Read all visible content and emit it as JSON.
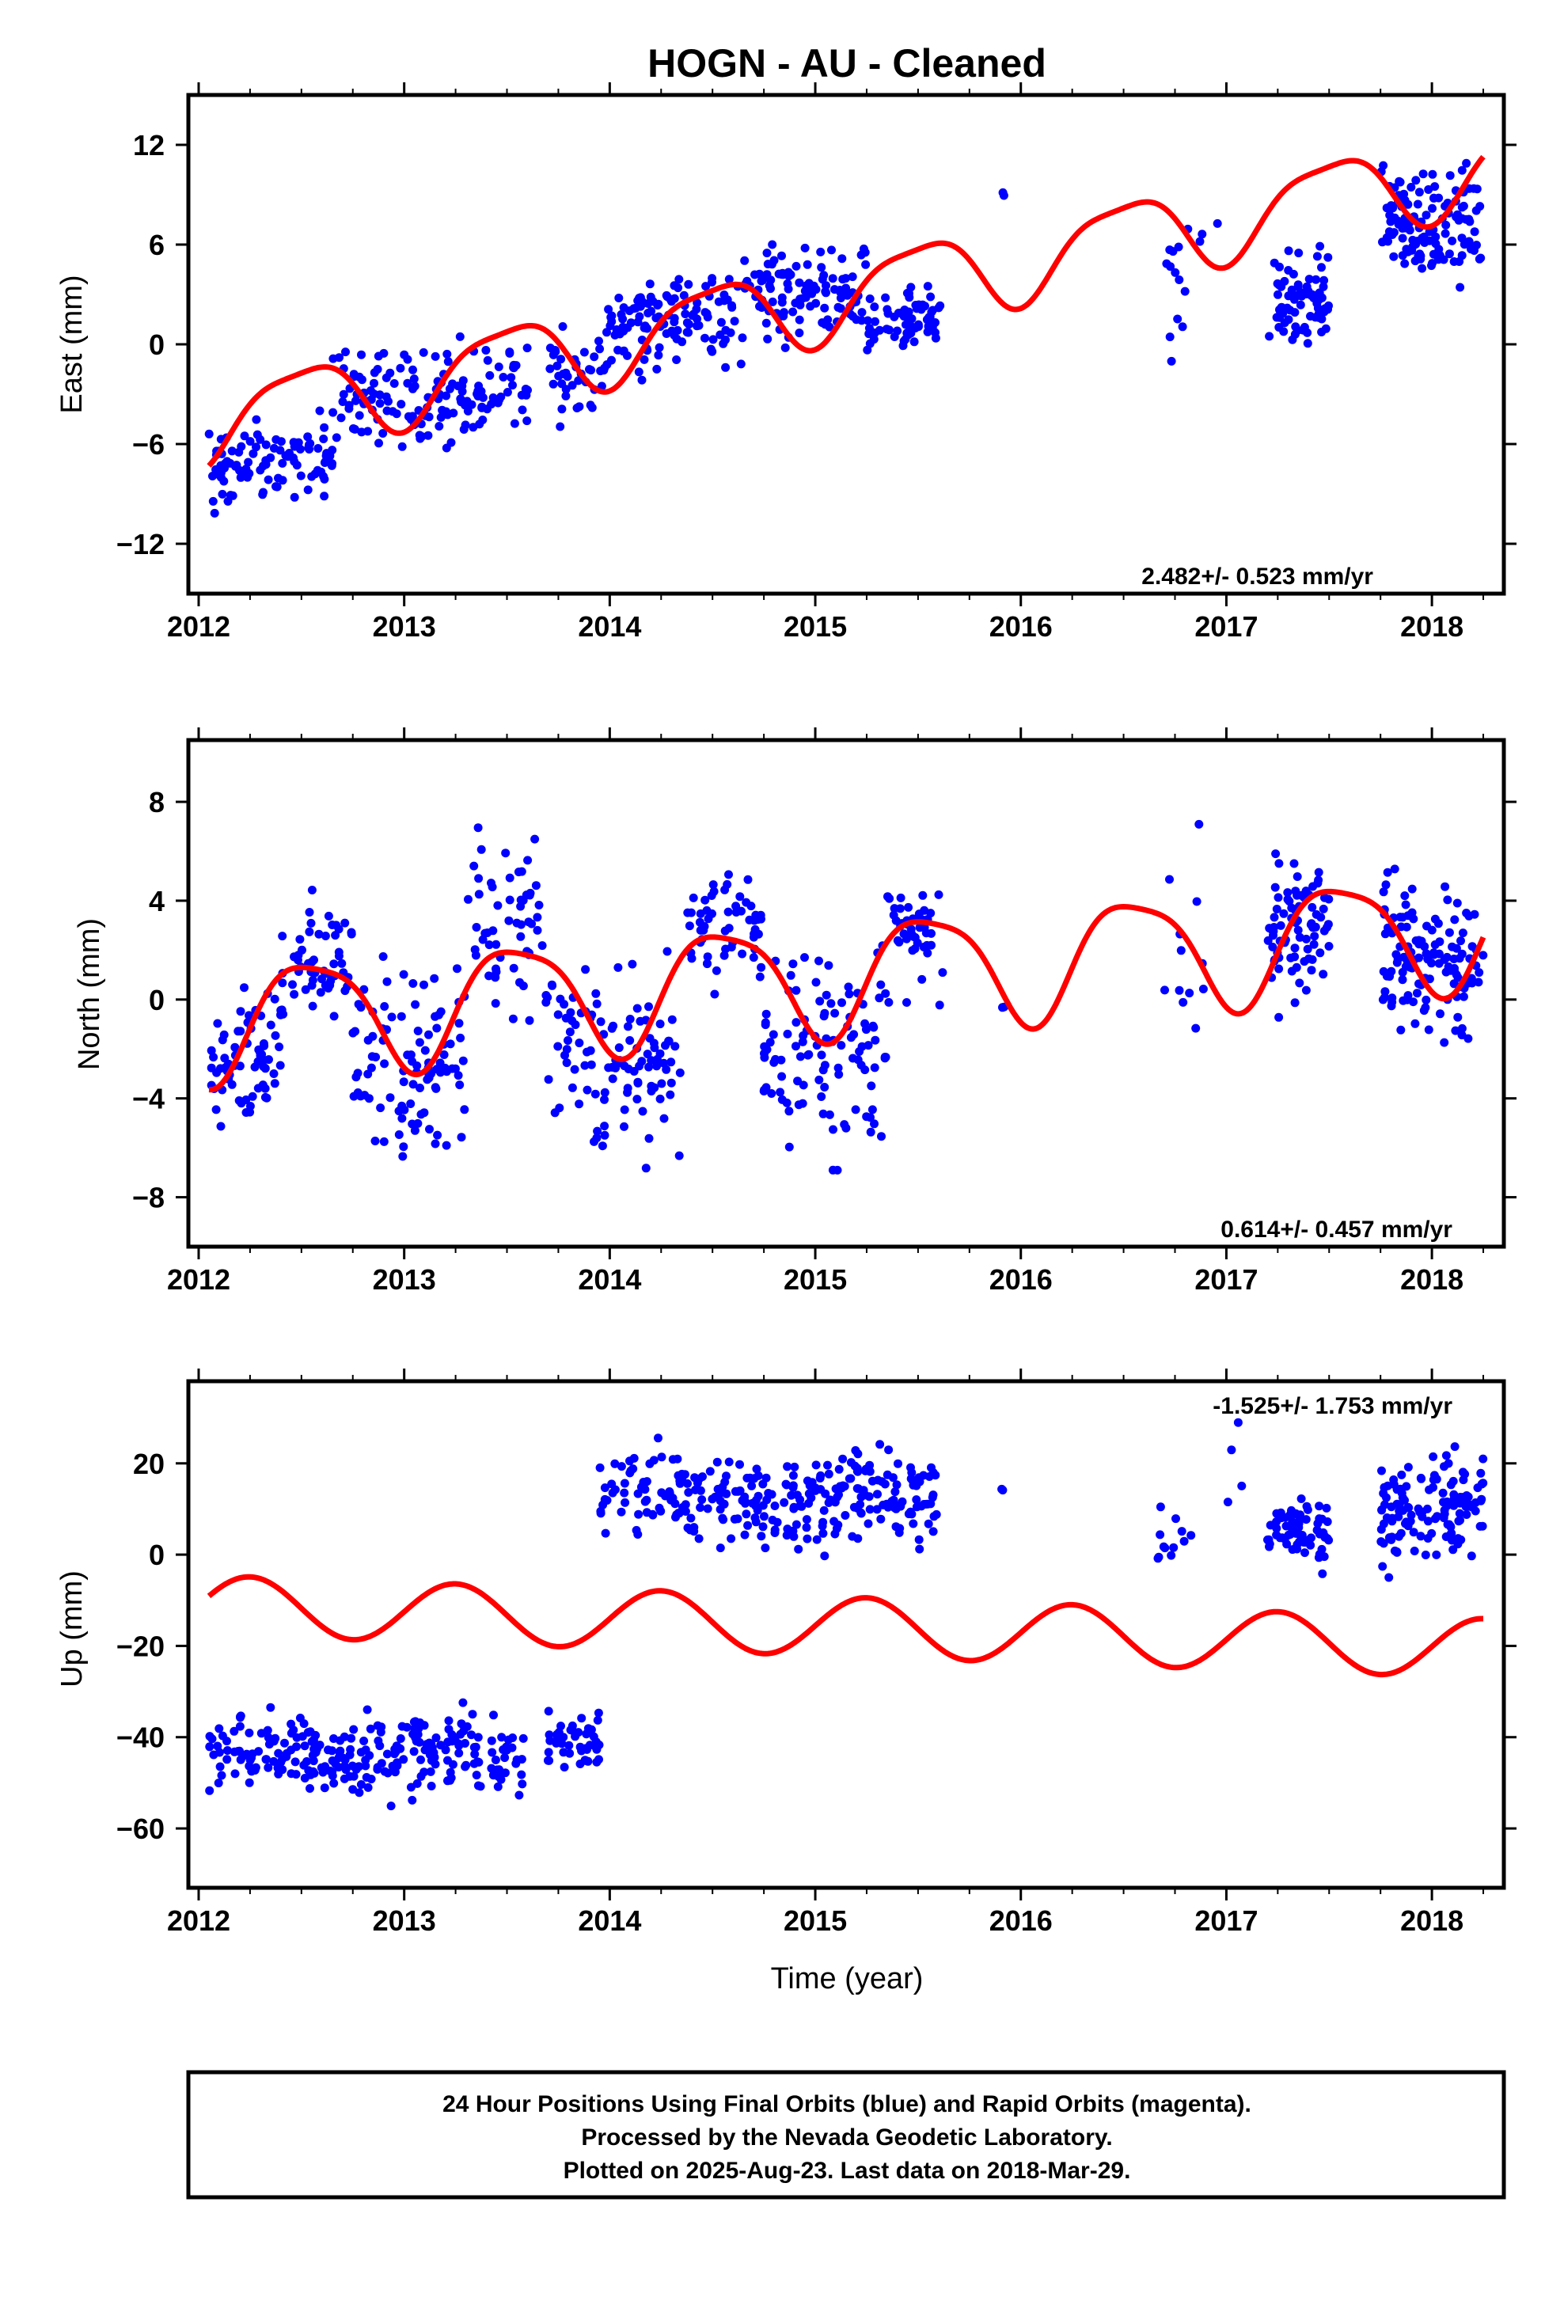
{
  "title": "HOGN  - AU - Cleaned",
  "colors": {
    "data": "#0000ff",
    "fit": "#ff0000",
    "frame": "#000000"
  },
  "chart_data": [
    {
      "type": "scatter",
      "id": "east",
      "ylabel": "East (mm)",
      "xlabel": "",
      "rate": "2.482+/- 0.523 mm/yr",
      "xlim": [
        2011.95,
        2018.35
      ],
      "ylim": [
        -15,
        15
      ],
      "xticks": [
        2012,
        2013,
        2014,
        2015,
        2016,
        2017,
        2018
      ],
      "yticks": [
        -12,
        -6,
        0,
        6,
        12
      ],
      "trend": {
        "intercept": -4.8,
        "slope": 2.482,
        "annual_amp": 2.4,
        "annual_phase": 0.25,
        "semi_amp": 0.6,
        "semi_phase": 0.1,
        "offsets": [
          [
            2013.7,
            0.0
          ]
        ]
      },
      "segments": [
        {
          "start": 2012.05,
          "end": 2012.65,
          "base": -7.2,
          "spread": 1.8,
          "n": 100
        },
        {
          "start": 2012.65,
          "end": 2013.6,
          "base": -3.0,
          "spread": 2.0,
          "n": 150
        },
        {
          "start": 2013.7,
          "end": 2013.98,
          "base": -1.2,
          "spread": 2.0,
          "n": 40
        },
        {
          "start": 2013.98,
          "end": 2014.65,
          "base": 1.4,
          "spread": 2.0,
          "n": 120
        },
        {
          "start": 2014.65,
          "end": 2015.25,
          "base": 3.5,
          "spread": 2.0,
          "n": 110
        },
        {
          "start": 2015.25,
          "end": 2015.62,
          "base": 1.2,
          "spread": 1.3,
          "n": 70
        },
        {
          "start": 2015.9,
          "end": 2015.92,
          "base": 9.4,
          "spread": 0.1,
          "n": 2
        },
        {
          "start": 2016.7,
          "end": 2016.8,
          "base": 3.5,
          "spread": 2.8,
          "n": 12
        },
        {
          "start": 2016.8,
          "end": 2017.0,
          "base": 7.5,
          "spread": 0.8,
          "n": 4
        },
        {
          "start": 2017.2,
          "end": 2017.5,
          "base": 2.5,
          "spread": 1.7,
          "n": 80
        },
        {
          "start": 2017.75,
          "end": 2018.25,
          "base": 7.5,
          "spread": 2.2,
          "n": 130
        }
      ]
    },
    {
      "type": "scatter",
      "id": "north",
      "ylabel": "North (mm)",
      "xlabel": "",
      "rate": "0.614+/- 0.457 mm/yr",
      "xlim": [
        2011.95,
        2018.35
      ],
      "ylim": [
        -10,
        10.5
      ],
      "xticks": [
        2012,
        2013,
        2014,
        2015,
        2016,
        2017,
        2018
      ],
      "yticks": [
        -8,
        -4,
        0,
        4,
        8
      ],
      "trend": {
        "intercept": -0.9,
        "slope": 0.614,
        "annual_amp": 2.3,
        "annual_phase": 0.3,
        "semi_amp": 0.5,
        "semi_phase": 0.2,
        "offsets": []
      },
      "segments": [
        {
          "start": 2012.05,
          "end": 2012.4,
          "base": -2.5,
          "spread": 1.8,
          "n": 70
        },
        {
          "start": 2012.4,
          "end": 2012.75,
          "base": 1.2,
          "spread": 1.8,
          "n": 55
        },
        {
          "start": 2012.75,
          "end": 2013.3,
          "base": -2.2,
          "spread": 2.4,
          "n": 100
        },
        {
          "start": 2013.3,
          "end": 2013.7,
          "base": 2.5,
          "spread": 2.2,
          "n": 60
        },
        {
          "start": 2013.7,
          "end": 2014.35,
          "base": -2.2,
          "spread": 2.3,
          "n": 110
        },
        {
          "start": 2014.35,
          "end": 2014.75,
          "base": 2.8,
          "spread": 1.5,
          "n": 60
        },
        {
          "start": 2014.75,
          "end": 2015.35,
          "base": -2.0,
          "spread": 2.6,
          "n": 110
        },
        {
          "start": 2015.35,
          "end": 2015.62,
          "base": 2.5,
          "spread": 1.6,
          "n": 45
        },
        {
          "start": 2015.9,
          "end": 2015.92,
          "base": 0.2,
          "spread": 0.3,
          "n": 2
        },
        {
          "start": 2016.7,
          "end": 2016.95,
          "base": 2.0,
          "spread": 3.0,
          "n": 12
        },
        {
          "start": 2017.2,
          "end": 2017.5,
          "base": 3.0,
          "spread": 2.0,
          "n": 80
        },
        {
          "start": 2017.75,
          "end": 2018.25,
          "base": 2.0,
          "spread": 2.0,
          "n": 130
        }
      ]
    },
    {
      "type": "scatter",
      "id": "up",
      "ylabel": "Up (mm)",
      "xlabel": "Time (year)",
      "rate": "-1.525+/- 1.753 mm/yr",
      "xlim": [
        2011.95,
        2018.35
      ],
      "ylim": [
        -73,
        38
      ],
      "xticks": [
        2012,
        2013,
        2014,
        2015,
        2016,
        2017,
        2018
      ],
      "yticks": [
        -60,
        -40,
        -20,
        0,
        20
      ],
      "trend": {
        "intercept": -11.0,
        "slope": -1.525,
        "annual_amp": 6.5,
        "annual_phase": 0.0,
        "semi_amp": 0.0,
        "semi_phase": 0.0,
        "offsets": []
      },
      "segments": [
        {
          "start": 2012.05,
          "end": 2013.6,
          "base": -44.0,
          "spread": 6.0,
          "n": 260
        },
        {
          "start": 2013.7,
          "end": 2013.95,
          "base": -40.0,
          "spread": 5.0,
          "n": 45
        },
        {
          "start": 2013.95,
          "end": 2014.75,
          "base": 13.0,
          "spread": 6.5,
          "n": 130
        },
        {
          "start": 2014.75,
          "end": 2015.6,
          "base": 12.0,
          "spread": 7.0,
          "n": 160
        },
        {
          "start": 2015.9,
          "end": 2015.92,
          "base": 15.0,
          "spread": 0.3,
          "n": 2
        },
        {
          "start": 2016.65,
          "end": 2016.85,
          "base": 3.0,
          "spread": 6.0,
          "n": 12
        },
        {
          "start": 2016.95,
          "end": 2017.1,
          "base": 15.0,
          "spread": 10.0,
          "n": 4
        },
        {
          "start": 2017.2,
          "end": 2017.5,
          "base": 4.0,
          "spread": 4.5,
          "n": 70
        },
        {
          "start": 2017.75,
          "end": 2018.25,
          "base": 10.0,
          "spread": 7.0,
          "n": 130
        }
      ]
    }
  ],
  "footer": {
    "line1": "24 Hour Positions Using Final Orbits (blue) and Rapid Orbits (magenta).",
    "line2": "Processed by the Nevada Geodetic Laboratory.",
    "line3": "Plotted on 2025-Aug-23. Last data on 2018-Mar-29."
  }
}
